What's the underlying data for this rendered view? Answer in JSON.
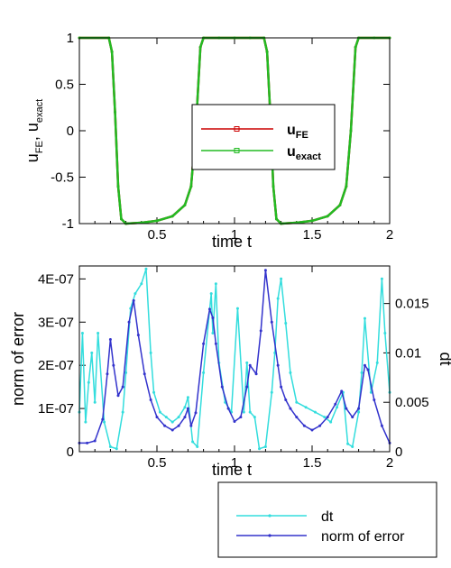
{
  "chart_data": [
    {
      "type": "line",
      "xlabel": "time t",
      "ylabel": "u_FE, u_exact",
      "xlim": [
        0,
        2
      ],
      "ylim": [
        -1,
        1
      ],
      "x_ticks": [
        "0.5",
        "1",
        "1.5",
        "2"
      ],
      "y_ticks": [
        "-1",
        "-0.5",
        "0",
        "0.5",
        "1"
      ],
      "legend_position": "center-right",
      "colors": {
        "u_FE": "#cc0000",
        "u_exact": "#22bb22"
      },
      "series": [
        {
          "name": "u_FE",
          "legend_main": "u",
          "legend_sub": "FE",
          "x": [
            0,
            0.19,
            0.21,
            0.23,
            0.25,
            0.27,
            0.3,
            0.4,
            0.5,
            0.6,
            0.68,
            0.72,
            0.75,
            0.78,
            0.8,
            0.9,
            1.0,
            1.1,
            1.19,
            1.21,
            1.23,
            1.25,
            1.27,
            1.3,
            1.4,
            1.5,
            1.6,
            1.68,
            1.72,
            1.75,
            1.78,
            1.8,
            1.9,
            2.0
          ],
          "y": [
            1,
            1,
            0.85,
            0.2,
            -0.6,
            -0.95,
            -1,
            -0.99,
            -0.97,
            -0.92,
            -0.8,
            -0.6,
            0.0,
            0.9,
            1,
            1,
            1,
            1,
            1,
            0.85,
            0.2,
            -0.6,
            -0.95,
            -1,
            -0.99,
            -0.97,
            -0.92,
            -0.8,
            -0.6,
            0.0,
            0.9,
            1,
            1,
            1
          ]
        },
        {
          "name": "u_exact",
          "legend_main": "u",
          "legend_sub": "exact",
          "x": [
            0,
            0.19,
            0.21,
            0.23,
            0.25,
            0.27,
            0.3,
            0.4,
            0.5,
            0.6,
            0.68,
            0.72,
            0.75,
            0.78,
            0.8,
            0.9,
            1.0,
            1.1,
            1.19,
            1.21,
            1.23,
            1.25,
            1.27,
            1.3,
            1.4,
            1.5,
            1.6,
            1.68,
            1.72,
            1.75,
            1.78,
            1.8,
            1.9,
            2.0
          ],
          "y": [
            1,
            1,
            0.85,
            0.2,
            -0.6,
            -0.95,
            -1,
            -0.99,
            -0.97,
            -0.92,
            -0.8,
            -0.6,
            0.0,
            0.9,
            1,
            1,
            1,
            1,
            1,
            0.85,
            0.2,
            -0.6,
            -0.95,
            -1,
            -0.99,
            -0.97,
            -0.92,
            -0.8,
            -0.6,
            0.0,
            0.9,
            1,
            1,
            1
          ]
        }
      ]
    },
    {
      "type": "line",
      "xlabel": "time t",
      "ylabel": "norm of error",
      "y2label": "dt",
      "xlim": [
        0,
        2
      ],
      "ylim": [
        0,
        4.3e-07
      ],
      "y2lim": [
        0,
        0.0188
      ],
      "x_ticks": [
        "0.5",
        "1",
        "1.5",
        "2"
      ],
      "y_ticks": [
        "0",
        "1E-07",
        "2E-07",
        "3E-07",
        "4E-07"
      ],
      "y2_ticks": [
        "0",
        "0.005",
        "0.01",
        "0.015"
      ],
      "legend_position": "below",
      "colors": {
        "dt": "#33dddd",
        "norm of error": "#3333cc"
      },
      "series": [
        {
          "name": "norm of error",
          "axis": "left",
          "x": [
            0.0,
            0.05,
            0.1,
            0.15,
            0.18,
            0.2,
            0.22,
            0.25,
            0.28,
            0.32,
            0.35,
            0.38,
            0.42,
            0.46,
            0.5,
            0.55,
            0.6,
            0.64,
            0.68,
            0.7,
            0.72,
            0.75,
            0.8,
            0.84,
            0.86,
            0.88,
            0.92,
            0.96,
            1.0,
            1.04,
            1.08,
            1.1,
            1.14,
            1.17,
            1.2,
            1.24,
            1.28,
            1.3,
            1.33,
            1.36,
            1.4,
            1.45,
            1.5,
            1.55,
            1.6,
            1.65,
            1.69,
            1.72,
            1.76,
            1.8,
            1.84,
            1.86,
            1.9,
            1.95,
            2.0
          ],
          "y": [
            2e-08,
            2e-08,
            2.5e-08,
            7.5e-08,
            1.8e-07,
            2.6e-07,
            2e-07,
            1.3e-07,
            1.5e-07,
            3e-07,
            3.5e-07,
            2.7e-07,
            1.8e-07,
            1.2e-07,
            8e-08,
            6e-08,
            5e-08,
            6e-08,
            8e-08,
            1e-07,
            6e-08,
            9e-08,
            2.5e-07,
            3.3e-07,
            3.1e-07,
            2.5e-07,
            1.5e-07,
            1e-07,
            7e-08,
            8e-08,
            1.5e-07,
            2e-07,
            1.8e-07,
            2.8e-07,
            4.2e-07,
            3e-07,
            2e-07,
            1.5e-07,
            1.2e-07,
            1e-07,
            8e-08,
            6e-08,
            5e-08,
            6e-08,
            8e-08,
            1.1e-07,
            1.4e-07,
            1e-07,
            8e-08,
            1e-07,
            2e-07,
            1.9e-07,
            1.2e-07,
            6e-08,
            2e-08
          ]
        },
        {
          "name": "dt",
          "axis": "right",
          "x": [
            0.0,
            0.02,
            0.04,
            0.06,
            0.08,
            0.1,
            0.12,
            0.16,
            0.2,
            0.24,
            0.28,
            0.3,
            0.33,
            0.36,
            0.4,
            0.43,
            0.46,
            0.48,
            0.52,
            0.56,
            0.6,
            0.64,
            0.68,
            0.7,
            0.73,
            0.76,
            0.8,
            0.85,
            0.86,
            0.88,
            0.9,
            0.94,
            0.98,
            1.02,
            1.06,
            1.08,
            1.1,
            1.13,
            1.16,
            1.2,
            1.24,
            1.26,
            1.28,
            1.3,
            1.33,
            1.36,
            1.4,
            1.46,
            1.52,
            1.58,
            1.62,
            1.66,
            1.7,
            1.73,
            1.76,
            1.8,
            1.82,
            1.84,
            1.88,
            1.92,
            1.95,
            1.97,
            2.0
          ],
          "y": [
            0.004,
            0.012,
            0.003,
            0.007,
            0.01,
            0.005,
            0.012,
            0.003,
            0.0005,
            0.0003,
            0.004,
            0.008,
            0.0145,
            0.016,
            0.017,
            0.0185,
            0.01,
            0.006,
            0.004,
            0.0035,
            0.003,
            0.0035,
            0.0045,
            0.0055,
            0.001,
            0.0005,
            0.008,
            0.016,
            0.012,
            0.017,
            0.009,
            0.005,
            0.004,
            0.0145,
            0.004,
            0.009,
            0.004,
            0.0035,
            0.0003,
            0.0005,
            0.006,
            0.01,
            0.0155,
            0.0175,
            0.013,
            0.008,
            0.005,
            0.0045,
            0.004,
            0.0035,
            0.003,
            0.0045,
            0.006,
            0.0008,
            0.0005,
            0.004,
            0.008,
            0.0135,
            0.006,
            0.009,
            0.0175,
            0.012,
            0.006
          ]
        }
      ]
    }
  ]
}
